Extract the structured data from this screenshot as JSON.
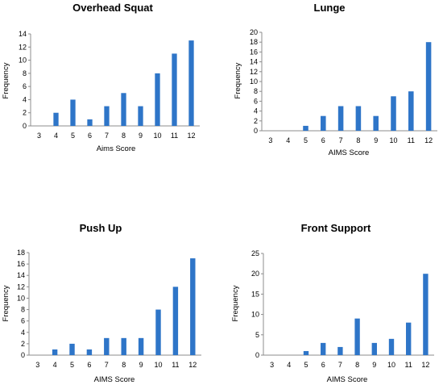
{
  "chart_data": [
    {
      "type": "bar",
      "title": "Overhead Squat",
      "xlabel": "Aims Score",
      "ylabel": "Frequency",
      "categories": [
        "3",
        "4",
        "5",
        "6",
        "7",
        "8",
        "9",
        "10",
        "11",
        "12"
      ],
      "values": [
        0,
        2,
        4,
        1,
        3,
        5,
        3,
        8,
        11,
        13
      ],
      "ylim": [
        0,
        14
      ],
      "yticks": [
        0,
        2,
        4,
        6,
        8,
        10,
        12,
        14
      ],
      "bar_color": "#2E75C8",
      "grid": false,
      "legend": "none"
    },
    {
      "type": "bar",
      "title": "Lunge",
      "xlabel": "AIMS Score",
      "ylabel": "Frequency",
      "categories": [
        "3",
        "4",
        "5",
        "6",
        "7",
        "8",
        "9",
        "10",
        "11",
        "12"
      ],
      "values": [
        0,
        0,
        1,
        3,
        5,
        5,
        3,
        7,
        8,
        18
      ],
      "ylim": [
        0,
        20
      ],
      "yticks": [
        0,
        2,
        4,
        6,
        8,
        10,
        12,
        14,
        16,
        18,
        20
      ],
      "bar_color": "#2E75C8",
      "grid": false,
      "legend": "none"
    },
    {
      "type": "bar",
      "title": "Push Up",
      "xlabel": "AIMS Score",
      "ylabel": "Frequency",
      "categories": [
        "3",
        "4",
        "5",
        "6",
        "7",
        "8",
        "9",
        "10",
        "11",
        "12"
      ],
      "values": [
        0,
        1,
        2,
        1,
        3,
        3,
        3,
        8,
        12,
        17
      ],
      "ylim": [
        0,
        18
      ],
      "yticks": [
        0,
        2,
        4,
        6,
        8,
        10,
        12,
        14,
        16,
        18
      ],
      "bar_color": "#2E75C8",
      "grid": false,
      "legend": "none"
    },
    {
      "type": "bar",
      "title": "Front Support",
      "xlabel": "AIMS Score",
      "ylabel": "Frequency",
      "categories": [
        "3",
        "4",
        "5",
        "6",
        "7",
        "8",
        "9",
        "10",
        "11",
        "12"
      ],
      "values": [
        0,
        0,
        1,
        3,
        2,
        9,
        3,
        4,
        8,
        20
      ],
      "ylim": [
        0,
        25
      ],
      "yticks": [
        0,
        5,
        10,
        15,
        20,
        25
      ],
      "bar_color": "#2E75C8",
      "grid": false,
      "legend": "none"
    }
  ]
}
